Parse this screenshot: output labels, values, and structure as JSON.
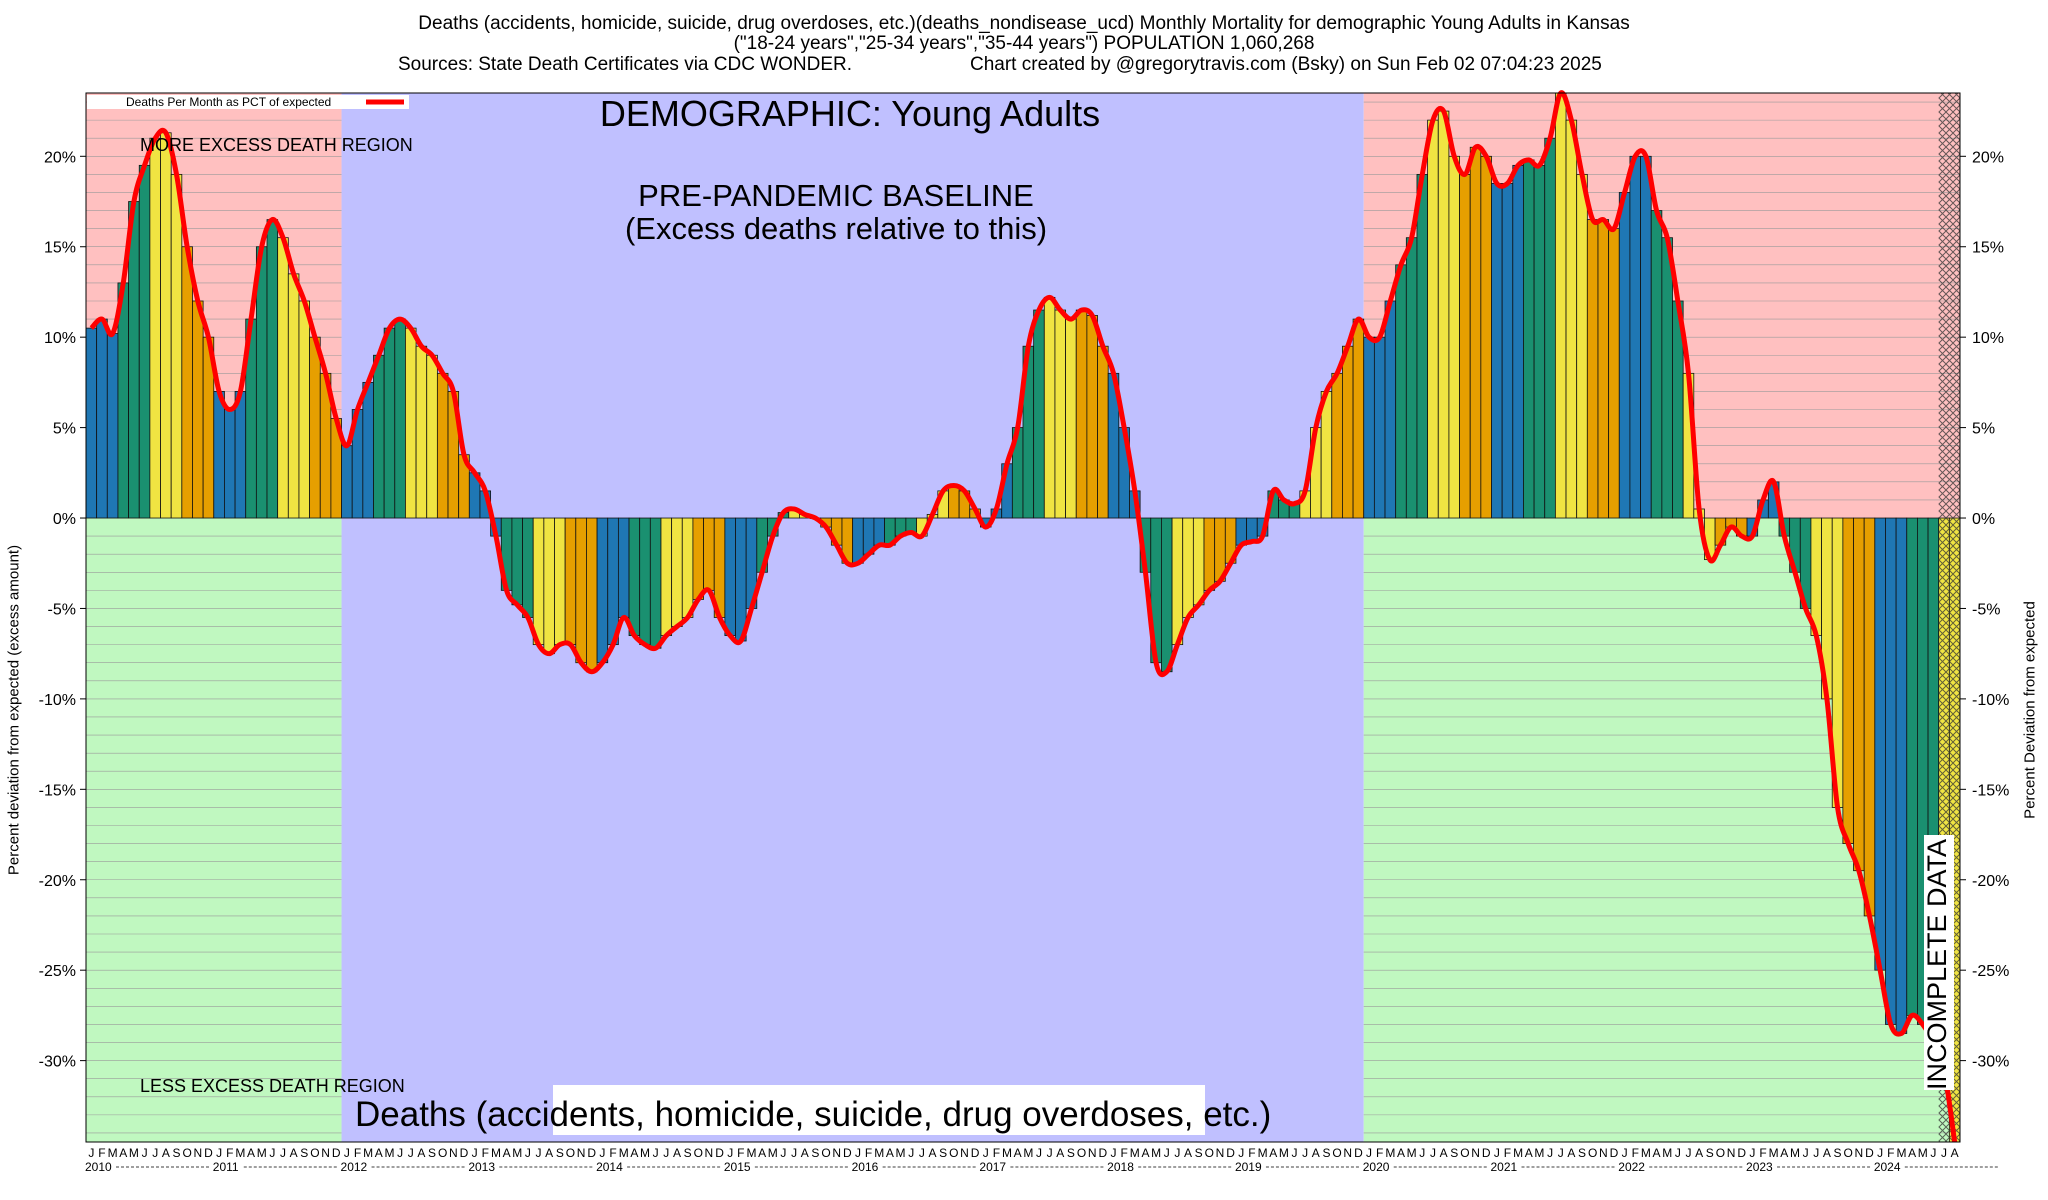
{
  "header": {
    "line1": "Deaths (accidents, homicide, suicide, drug overdoses, etc.)(deaths_nondisease_ucd) Monthly Mortality for demographic Young Adults in Kansas",
    "line2": "(\"18-24 years\",\"25-34 years\",\"35-44 years\") POPULATION 1,060,268",
    "line3_left": "Sources: State Death Certificates via CDC WONDER.",
    "line3_right": "Chart created by @gregorytravis.com (Bsky) on Sun Feb 02 07:04:23 2025"
  },
  "chart_data": {
    "type": "bar",
    "series": [
      {
        "name": "Deaths Per Month as PCT of expected",
        "color": "#ff0000",
        "start": "2010-01",
        "values": [
          10.5,
          11.0,
          10.2,
          13.0,
          17.5,
          19.5,
          21.0,
          21.3,
          19.0,
          15.0,
          12.0,
          10.0,
          7.0,
          6.0,
          7.0,
          11.0,
          15.0,
          16.5,
          15.5,
          13.5,
          12.0,
          10.0,
          8.0,
          5.5,
          4.0,
          6.0,
          7.5,
          9.0,
          10.5,
          11.0,
          10.5,
          9.5,
          9.0,
          8.0,
          7.0,
          3.5,
          2.5,
          1.5,
          -1.0,
          -4.0,
          -4.8,
          -5.5,
          -7.0,
          -7.5,
          -7.0,
          -7.0,
          -8.0,
          -8.5,
          -8.0,
          -7.0,
          -5.5,
          -6.5,
          -7.0,
          -7.2,
          -6.5,
          -6.0,
          -5.5,
          -4.5,
          -4.0,
          -5.5,
          -6.5,
          -6.8,
          -5.0,
          -3.0,
          -1.0,
          0.3,
          0.5,
          0.2,
          0.0,
          -0.5,
          -1.5,
          -2.5,
          -2.5,
          -2.0,
          -1.5,
          -1.5,
          -1.0,
          -0.8,
          -1.0,
          0.2,
          1.5,
          1.8,
          1.5,
          0.5,
          -0.5,
          0.5,
          3.0,
          5.0,
          9.5,
          11.5,
          12.2,
          11.5,
          11.0,
          11.5,
          11.2,
          9.5,
          8.0,
          5.0,
          1.5,
          -3.0,
          -8.0,
          -8.5,
          -7.0,
          -5.5,
          -4.8,
          -4.0,
          -3.5,
          -2.5,
          -1.5,
          -1.3,
          -1.0,
          1.5,
          1.0,
          0.8,
          1.5,
          5.0,
          7.0,
          8.0,
          9.5,
          11.0,
          10.0,
          10.0,
          12.0,
          14.0,
          15.5,
          19.0,
          22.0,
          22.5,
          20.0,
          19.0,
          20.5,
          20.0,
          18.5,
          18.5,
          19.5,
          19.8,
          19.5,
          21.0,
          23.5,
          22.0,
          19.0,
          16.5,
          16.5,
          16.0,
          18.0,
          20.0,
          20.0,
          17.0,
          15.5,
          12.0,
          8.0,
          0.5,
          -2.3,
          -1.5,
          -0.5,
          -1.0,
          -1.0,
          1.0,
          2.0,
          -1.0,
          -3.0,
          -5.0,
          -6.5,
          -10.0,
          -16.0,
          -18.0,
          -19.5,
          -22.0,
          -25.0,
          -28.0,
          -28.5,
          -27.5,
          -28.0,
          -29.0,
          -30.5,
          -34.5
        ]
      }
    ],
    "ylim": [
      -34.5,
      23.5
    ],
    "y_ticks": [
      -30,
      -25,
      -20,
      -15,
      -10,
      -5,
      0,
      5,
      10,
      15,
      20
    ],
    "y_tick_format": "{v}%",
    "ylabel": "Percent deviation from expected (excess amount)",
    "ylabel_right": "Percent Deviation from expected",
    "year_labels": [
      "2010",
      "2011",
      "2012",
      "2013",
      "2014",
      "2015",
      "2016",
      "2017",
      "2018",
      "2019",
      "2020",
      "2021",
      "2022",
      "2023",
      "2024"
    ],
    "month_letters": [
      "J",
      "F",
      "M",
      "A",
      "M",
      "J",
      "J",
      "A",
      "S",
      "O",
      "N",
      "D"
    ],
    "bar_colors": [
      "#1f77b4",
      "#1a9070",
      "#f0e442",
      "#e69f00"
    ],
    "grid": true,
    "legend_position": "top-left",
    "regions": {
      "baseline_start": "2012-01",
      "baseline_end": "2019-12",
      "incomplete_start": "2024-07",
      "pre_baseline_top_color": "#ffc0c0",
      "pre_baseline_bottom_color": "#c0f8c0",
      "baseline_color": "#c0c0ff"
    },
    "annotations": {
      "demographic": "DEMOGRAPHIC: Young Adults",
      "baseline_line1": "PRE-PANDEMIC BASELINE",
      "baseline_line2": "(Excess deaths relative to this)",
      "more_excess": "MORE EXCESS DEATH REGION",
      "less_excess": "LESS EXCESS DEATH REGION",
      "category": "Deaths (accidents, homicide, suicide, drug overdoses, etc.)",
      "incomplete": "INCOMPLETE DATA"
    }
  }
}
